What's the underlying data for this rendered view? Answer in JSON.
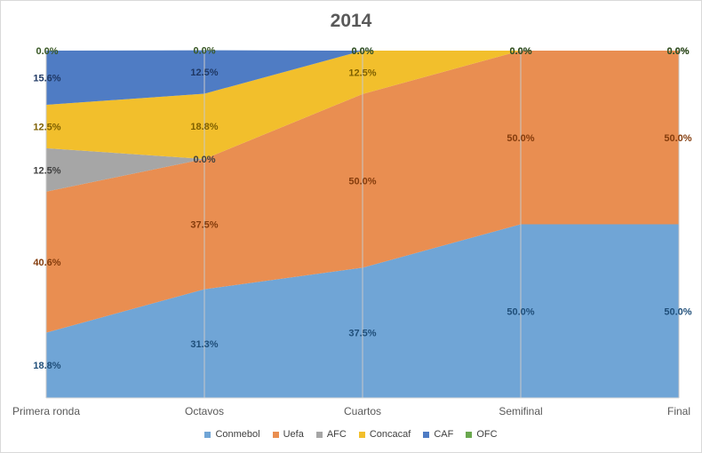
{
  "chart_data": {
    "type": "area",
    "stacked": "percent",
    "title": "2014",
    "xlabel": "",
    "ylabel": "",
    "categories": [
      "Primera ronda",
      "Octavos",
      "Cuartos",
      "Semifinal",
      "Final"
    ],
    "series": [
      {
        "name": "Conmebol",
        "color": "#70a5d6",
        "label_color": "#1f4e79",
        "values": [
          18.8,
          31.3,
          37.5,
          50.0,
          50.0
        ],
        "labels": [
          "18.8%",
          "31.3%",
          "37.5%",
          "50.0%",
          "50.0%"
        ]
      },
      {
        "name": "Uefa",
        "color": "#e98e51",
        "label_color": "#843c0c",
        "values": [
          40.6,
          37.5,
          50.0,
          50.0,
          50.0
        ],
        "labels": [
          "40.6%",
          "37.5%",
          "50.0%",
          "50.0%",
          "50.0%"
        ]
      },
      {
        "name": "AFC",
        "color": "#a6a6a6",
        "label_color": "#404040",
        "values": [
          12.5,
          0.0,
          0.0,
          0.0,
          0.0
        ],
        "labels": [
          "12.5%",
          "0.0%",
          "0.0%",
          "0.0%",
          "0.0%"
        ]
      },
      {
        "name": "Concacaf",
        "color": "#f2bf2c",
        "label_color": "#7f6000",
        "values": [
          12.5,
          18.8,
          12.5,
          0.0,
          0.0
        ],
        "labels": [
          "12.5%",
          "18.8%",
          "12.5%",
          "0.0%",
          "0.0%"
        ]
      },
      {
        "name": "CAF",
        "color": "#4f7cc4",
        "label_color": "#1f3864",
        "values": [
          15.6,
          12.5,
          0.0,
          0.0,
          0.0
        ],
        "labels": [
          "15.6%",
          "12.5%",
          "0.0%",
          "0.0%",
          "0.0%"
        ]
      },
      {
        "name": "OFC",
        "color": "#6aa84f",
        "label_color": "#375623",
        "values": [
          0.0,
          0.0,
          0.0,
          0.0,
          0.0
        ],
        "labels": [
          "0.0%",
          "0.0%",
          "0.0%",
          "0.0%",
          "0.0%"
        ]
      }
    ],
    "visible_labels": [
      [
        true,
        true,
        true,
        true,
        true
      ],
      [
        true,
        true,
        true,
        true,
        true
      ],
      [
        true,
        true,
        false,
        false,
        false
      ],
      [
        true,
        true,
        true,
        true,
        true
      ],
      [
        true,
        true,
        true,
        true,
        true
      ],
      [
        true,
        true,
        true,
        true,
        true
      ]
    ],
    "ylim": [
      0,
      100
    ],
    "grid": "vertical",
    "legend_position": "bottom"
  }
}
